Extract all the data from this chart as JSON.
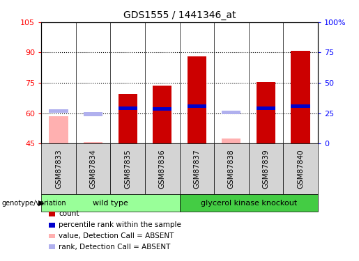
{
  "title": "GDS1555 / 1441346_at",
  "samples": [
    "GSM87833",
    "GSM87834",
    "GSM87835",
    "GSM87836",
    "GSM87837",
    "GSM87838",
    "GSM87839",
    "GSM87840"
  ],
  "ylim_left": [
    45,
    105
  ],
  "ylim_right": [
    0,
    100
  ],
  "yticks_left": [
    45,
    60,
    75,
    90,
    105
  ],
  "yticks_right": [
    0,
    25,
    50,
    75,
    100
  ],
  "ytick_labels_left": [
    "45",
    "60",
    "75",
    "90",
    "105"
  ],
  "ytick_labels_right": [
    "0",
    "25",
    "50",
    "75",
    "100%"
  ],
  "count_values": [
    58.5,
    45.8,
    69.5,
    73.5,
    88.0,
    47.5,
    75.5,
    91.0
  ],
  "rank_values": [
    61.0,
    59.5,
    62.5,
    62.0,
    63.5,
    60.5,
    62.5,
    63.5
  ],
  "absent": [
    true,
    true,
    false,
    false,
    false,
    true,
    false,
    false
  ],
  "color_bar_present": "#cc0000",
  "color_bar_absent": "#ffb0b0",
  "color_rank_present": "#0000cc",
  "color_rank_absent": "#b0b0ee",
  "bar_width": 0.55,
  "groups": [
    {
      "label": "wild type",
      "start": 0,
      "end": 3,
      "color": "#99ff99"
    },
    {
      "label": "glycerol kinase knockout",
      "start": 4,
      "end": 7,
      "color": "#44cc44"
    }
  ],
  "group_label": "genotype/variation",
  "legend_items": [
    {
      "label": "count",
      "color": "#cc0000"
    },
    {
      "label": "percentile rank within the sample",
      "color": "#0000cc"
    },
    {
      "label": "value, Detection Call = ABSENT",
      "color": "#ffb0b0"
    },
    {
      "label": "rank, Detection Call = ABSENT",
      "color": "#b0b0ee"
    }
  ],
  "grid_yticks": [
    60,
    75,
    90
  ],
  "background_color": "#ffffff"
}
